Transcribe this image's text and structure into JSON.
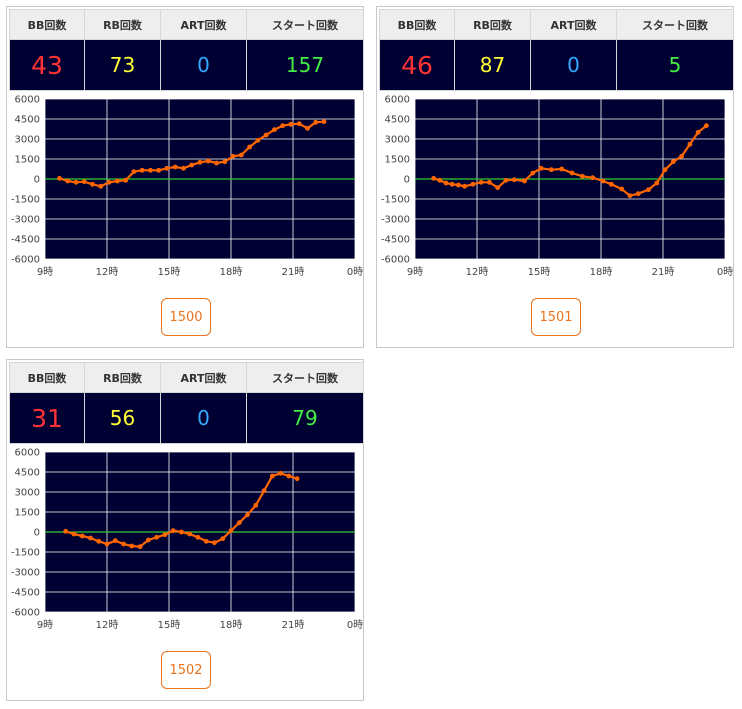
{
  "headers": [
    "BB回数",
    "RB回数",
    "ART回数",
    "スタート回数"
  ],
  "colors": {
    "bb": "#ff3333",
    "rb": "#ffff33",
    "art": "#33aaff",
    "start": "#44ee44",
    "plot_bg": "#000033",
    "line": "#ff6600",
    "zero_line": "#33cc33",
    "grid": "#ffffff"
  },
  "panels": [
    {
      "bb": "43",
      "rb": "73",
      "art": "0",
      "start": "157",
      "machine": "1500"
    },
    {
      "bb": "46",
      "rb": "87",
      "art": "0",
      "start": "5",
      "machine": "1501"
    },
    {
      "bb": "31",
      "rb": "56",
      "art": "0",
      "start": "79",
      "machine": "1502"
    }
  ],
  "chart_data": [
    {
      "type": "line",
      "x_ticks": [
        "9時",
        "12時",
        "15時",
        "18時",
        "21時",
        "0時"
      ],
      "y_ticks": [
        6000,
        4500,
        3000,
        1500,
        0,
        -1500,
        -3000,
        -4500,
        -6000
      ],
      "xlim": [
        9,
        24
      ],
      "ylim": [
        -6000,
        6000
      ],
      "zero_line": true,
      "grid": true,
      "x": [
        9.7,
        10.1,
        10.5,
        10.9,
        11.3,
        11.7,
        12.1,
        12.5,
        12.9,
        13.3,
        13.7,
        14.1,
        14.5,
        14.9,
        15.3,
        15.7,
        16.1,
        16.5,
        16.9,
        17.3,
        17.7,
        18.1,
        18.5,
        18.9,
        19.3,
        19.7,
        20.1,
        20.5,
        20.9,
        21.3,
        21.7,
        22.1,
        22.5
      ],
      "y": [
        50,
        -150,
        -250,
        -200,
        -400,
        -550,
        -250,
        -150,
        -100,
        550,
        650,
        650,
        650,
        800,
        900,
        800,
        1050,
        1250,
        1350,
        1200,
        1300,
        1700,
        1800,
        2400,
        2900,
        3300,
        3700,
        4000,
        4100,
        4150,
        3800,
        4250,
        4300
      ]
    },
    {
      "type": "line",
      "x_ticks": [
        "9時",
        "12時",
        "15時",
        "18時",
        "21時",
        "0時"
      ],
      "y_ticks": [
        6000,
        4500,
        3000,
        1500,
        0,
        -1500,
        -3000,
        -4500,
        -6000
      ],
      "xlim": [
        9,
        24
      ],
      "ylim": [
        -6000,
        6000
      ],
      "zero_line": true,
      "grid": true,
      "x": [
        9.9,
        10.2,
        10.5,
        10.8,
        11.1,
        11.4,
        11.8,
        12.2,
        12.6,
        13.0,
        13.4,
        13.8,
        14.3,
        14.7,
        15.1,
        15.6,
        16.1,
        16.6,
        17.1,
        17.6,
        18.1,
        18.5,
        19.0,
        19.4,
        19.8,
        20.3,
        20.7,
        21.1,
        21.5,
        21.9,
        22.3,
        22.7,
        23.1
      ],
      "y": [
        50,
        -100,
        -300,
        -400,
        -450,
        -550,
        -400,
        -250,
        -250,
        -650,
        -100,
        -50,
        -150,
        450,
        800,
        700,
        750,
        450,
        200,
        100,
        -150,
        -400,
        -750,
        -1250,
        -1100,
        -800,
        -300,
        700,
        1300,
        1700,
        2600,
        3500,
        4000
      ]
    },
    {
      "type": "line",
      "x_ticks": [
        "9時",
        "12時",
        "15時",
        "18時",
        "21時",
        "0時"
      ],
      "y_ticks": [
        6000,
        4500,
        3000,
        1500,
        0,
        -1500,
        -3000,
        -4500,
        -6000
      ],
      "xlim": [
        9,
        24
      ],
      "ylim": [
        -6000,
        6000
      ],
      "zero_line": true,
      "grid": true,
      "x": [
        10.0,
        10.4,
        10.8,
        11.2,
        11.6,
        12.0,
        12.4,
        12.8,
        13.2,
        13.6,
        14.0,
        14.4,
        14.8,
        15.2,
        15.6,
        16.0,
        16.4,
        16.8,
        17.2,
        17.6,
        18.0,
        18.4,
        18.8,
        19.2,
        19.6,
        20.0,
        20.4,
        20.8,
        21.2
      ],
      "y": [
        50,
        -150,
        -300,
        -450,
        -700,
        -900,
        -650,
        -900,
        -1050,
        -1100,
        -600,
        -400,
        -200,
        100,
        0,
        -150,
        -400,
        -700,
        -800,
        -500,
        100,
        700,
        1300,
        2000,
        3100,
        4200,
        4400,
        4200,
        4000
      ]
    }
  ]
}
